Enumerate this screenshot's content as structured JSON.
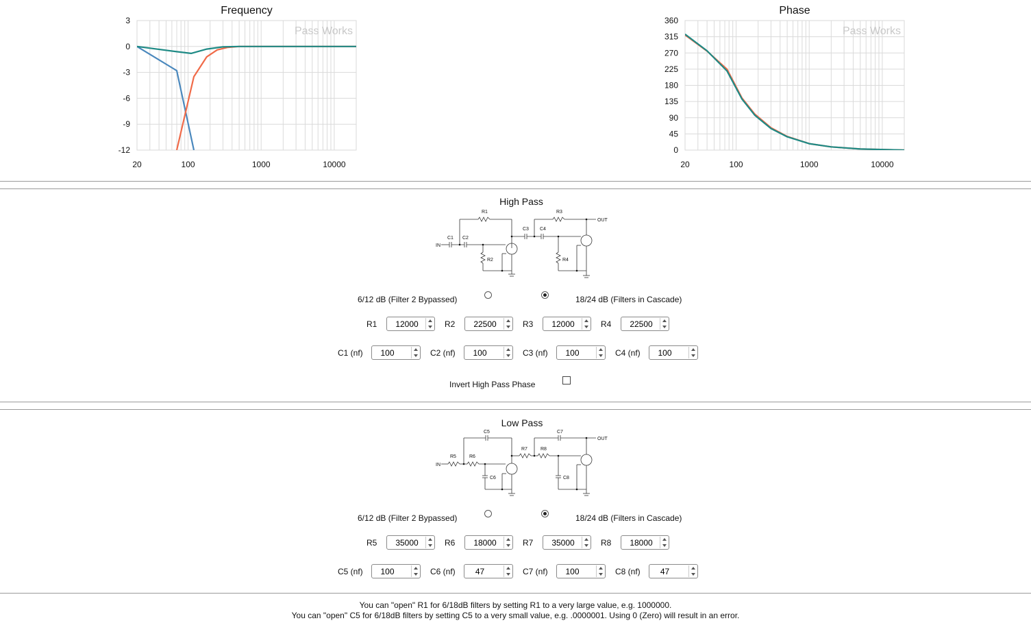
{
  "charts": {
    "frequency": {
      "title": "Frequency",
      "watermark": "Pass Works",
      "y_ticks": [
        "3",
        "0",
        "-3",
        "-6",
        "-9",
        "-12"
      ],
      "x_ticks": [
        "20",
        "100",
        "1000",
        "10000"
      ]
    },
    "phase": {
      "title": "Phase",
      "watermark": "Pass Works",
      "y_ticks": [
        "360",
        "315",
        "270",
        "225",
        "180",
        "135",
        "90",
        "45",
        "0"
      ],
      "x_ticks": [
        "20",
        "100",
        "1000",
        "10000"
      ]
    }
  },
  "chart_data": [
    {
      "type": "line",
      "title": "Frequency",
      "xscale": "log",
      "xlim": [
        20,
        20000
      ],
      "ylim": [
        -12,
        3
      ],
      "grid": true,
      "series": [
        {
          "color": "#4a88bd",
          "x": [
            20,
            70,
            120
          ],
          "y": [
            0,
            -2.8,
            -12
          ]
        },
        {
          "color": "#f06a48",
          "x": [
            70,
            120,
            180,
            250,
            350,
            500,
            1000,
            20000
          ],
          "y": [
            -12,
            -3.5,
            -1.2,
            -0.4,
            -0.1,
            0,
            0,
            0
          ]
        },
        {
          "color": "#1e8a85",
          "x": [
            20,
            70,
            110,
            180,
            300,
            500,
            1000,
            20000
          ],
          "y": [
            0,
            -0.6,
            -0.8,
            -0.3,
            -0.05,
            0,
            0,
            0
          ]
        }
      ]
    },
    {
      "type": "line",
      "title": "Phase",
      "xscale": "log",
      "xlim": [
        20,
        20000
      ],
      "ylim": [
        0,
        360
      ],
      "grid": true,
      "series": [
        {
          "color": "#f06a48",
          "x": [
            20,
            40,
            75,
            120,
            180,
            300,
            500,
            1000,
            2000,
            5000,
            20000
          ],
          "y": [
            320,
            275,
            225,
            145,
            100,
            62,
            38,
            18,
            9,
            3,
            0
          ]
        },
        {
          "color": "#1e8a85",
          "x": [
            20,
            40,
            75,
            120,
            180,
            300,
            500,
            1000,
            2000,
            5000,
            20000
          ],
          "y": [
            322,
            276,
            220,
            142,
            97,
            60,
            37,
            18,
            9,
            3,
            0
          ]
        }
      ]
    }
  ],
  "high_pass": {
    "title": "High Pass",
    "circuit": {
      "in": "IN",
      "out": "OUT",
      "parts": [
        "R1",
        "R2",
        "R3",
        "R4",
        "C1",
        "C2",
        "C3",
        "C4"
      ]
    },
    "option_bypassed": "6/12 dB (Filter 2 Bypassed)",
    "option_cascade": "18/24 dB (Filters in Cascade)",
    "selected": "cascade",
    "resistors": [
      {
        "label": "R1",
        "value": "12000"
      },
      {
        "label": "R2",
        "value": "22500"
      },
      {
        "label": "R3",
        "value": "12000"
      },
      {
        "label": "R4",
        "value": "22500"
      }
    ],
    "capacitors": [
      {
        "label": "C1 (nf)",
        "value": "100"
      },
      {
        "label": "C2 (nf)",
        "value": "100"
      },
      {
        "label": "C3 (nf)",
        "value": "100"
      },
      {
        "label": "C4 (nf)",
        "value": "100"
      }
    ],
    "invert_label": "Invert High Pass Phase",
    "invert_checked": false
  },
  "low_pass": {
    "title": "Low Pass",
    "circuit": {
      "in": "IN",
      "out": "OUT",
      "parts": [
        "R5",
        "R6",
        "R7",
        "R8",
        "C5",
        "C6",
        "C7",
        "C8"
      ]
    },
    "option_bypassed": "6/12 dB (Filter 2 Bypassed)",
    "option_cascade": "18/24 dB (Filters in Cascade)",
    "selected": "cascade",
    "resistors": [
      {
        "label": "R5",
        "value": "35000"
      },
      {
        "label": "R6",
        "value": "18000"
      },
      {
        "label": "R7",
        "value": "35000"
      },
      {
        "label": "R8",
        "value": "18000"
      }
    ],
    "capacitors": [
      {
        "label": "C5 (nf)",
        "value": "100"
      },
      {
        "label": "C6 (nf)",
        "value": "47"
      },
      {
        "label": "C7 (nf)",
        "value": "100"
      },
      {
        "label": "C8 (nf)",
        "value": "47"
      }
    ]
  },
  "notes": [
    "You can \"open\" R1 for 6/18dB filters by setting R1 to a very large value, e.g. 1000000.",
    "You can \"open\" C5 for 6/18dB filters by setting C5 to a very small value, e.g. .0000001. Using 0 (Zero) will result in an error."
  ]
}
